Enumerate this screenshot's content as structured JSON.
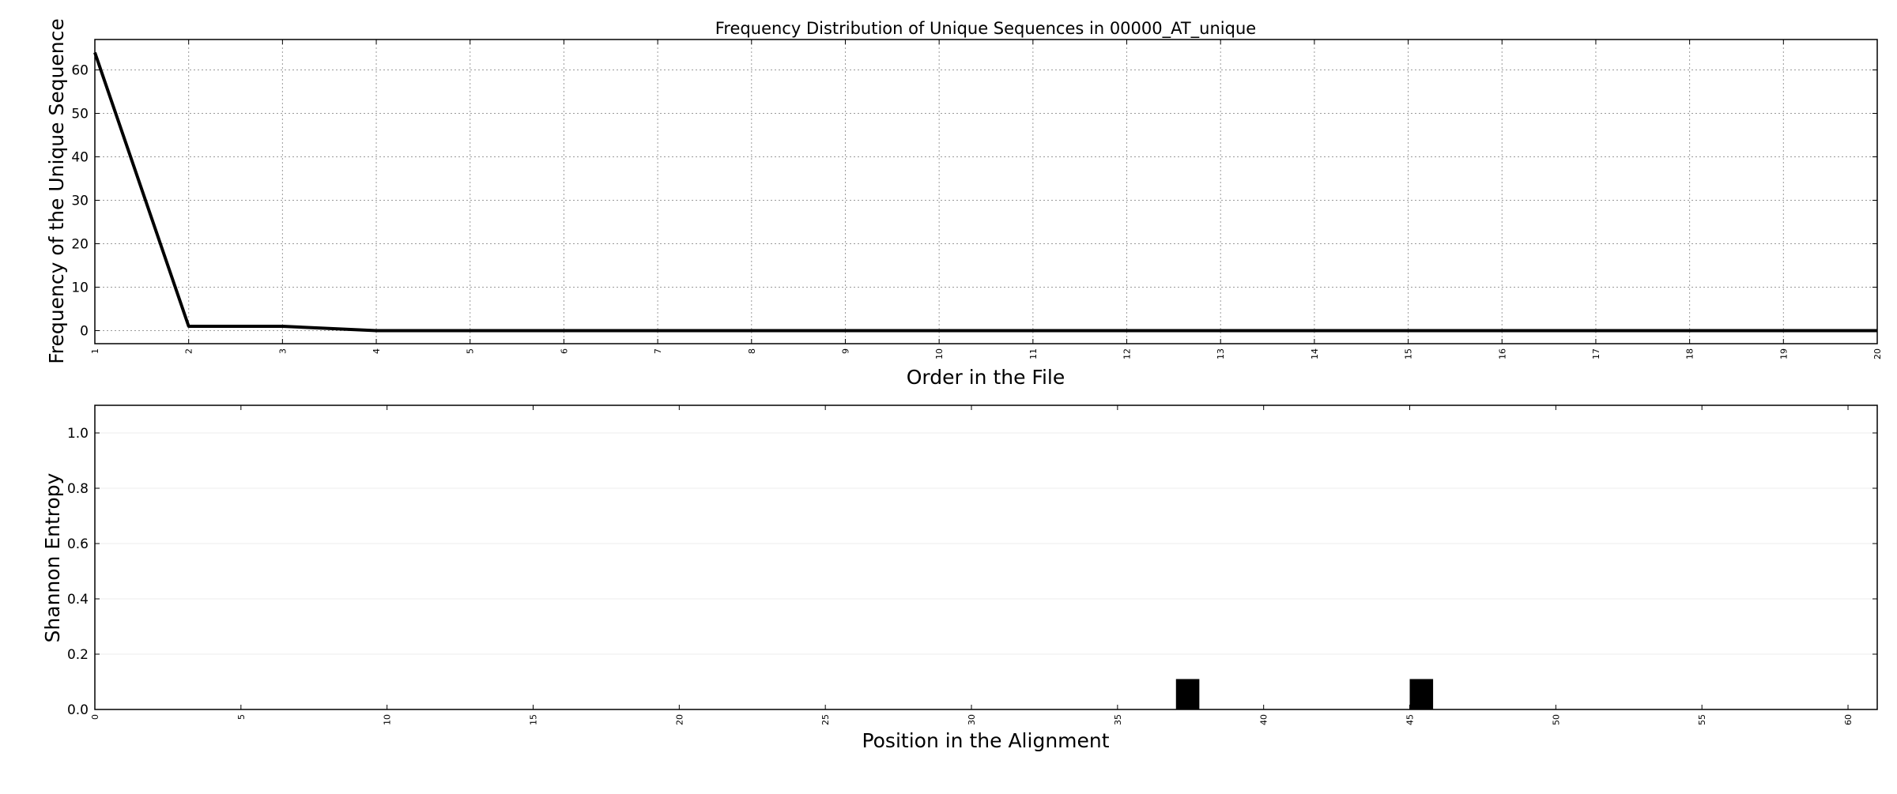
{
  "chart_data": [
    {
      "type": "line",
      "title": "Frequency Distribution of Unique Sequences in 00000_AT_unique",
      "xlabel": "Order in the File",
      "ylabel": "Frequency of the Unique Sequence",
      "xlim": [
        1,
        20
      ],
      "ylim": [
        -3,
        67
      ],
      "xticks": [
        1,
        2,
        3,
        4,
        5,
        6,
        7,
        8,
        9,
        10,
        11,
        12,
        13,
        14,
        15,
        16,
        17,
        18,
        19,
        20
      ],
      "yticks": [
        0,
        10,
        20,
        30,
        40,
        50,
        60
      ],
      "grid": true,
      "series": [
        {
          "color": "#000000",
          "x": [
            1,
            2,
            3,
            4,
            5,
            6,
            7,
            8,
            9,
            10,
            11,
            12,
            13,
            14,
            15,
            16,
            17,
            18,
            19,
            20
          ],
          "y": [
            64,
            1,
            1,
            0,
            0,
            0,
            0,
            0,
            0,
            0,
            0,
            0,
            0,
            0,
            0,
            0,
            0,
            0,
            0,
            0
          ]
        }
      ]
    },
    {
      "type": "bar",
      "title": "",
      "xlabel": "Position in the Alignment",
      "ylabel": "Shannon Entropy",
      "xlim": [
        0,
        61
      ],
      "ylim": [
        0,
        1.1
      ],
      "xticks": [
        0,
        5,
        10,
        15,
        20,
        25,
        30,
        35,
        40,
        45,
        50,
        55,
        60
      ],
      "yticks": [
        "0.0",
        "0.2",
        "0.4",
        "0.6",
        "0.8",
        "1.0"
      ],
      "grid": true,
      "bar_color": "#000000",
      "bar_width": 0.8,
      "bars": [
        {
          "x": 37,
          "value": 0.11
        },
        {
          "x": 45,
          "value": 0.11
        }
      ]
    }
  ]
}
